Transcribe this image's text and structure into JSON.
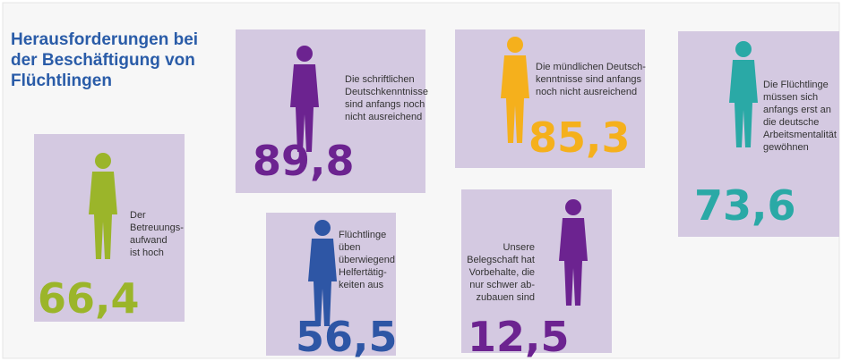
{
  "chart_data": {
    "type": "pictogram",
    "title": [
      "Herausforderungen bei",
      "der Beschäftigung von",
      "Flüchtlingen"
    ],
    "items": [
      {
        "label": [
          "Der",
          "Betreuungs-",
          "aufwand",
          "ist hoch"
        ],
        "value": 66.4,
        "value_label": "66,4",
        "color": "#9bb52a"
      },
      {
        "label": [
          "Die schriftlichen",
          "Deutschkenntnisse",
          "sind anfangs noch",
          "nicht ausreichend"
        ],
        "value": 89.8,
        "value_label": "89,8",
        "color": "#6c2390"
      },
      {
        "label": [
          "Die mündlichen Deutsch-",
          "kenntnisse sind anfangs",
          "noch nicht ausreichend"
        ],
        "value": 85.3,
        "value_label": "85,3",
        "color": "#f5b01c"
      },
      {
        "label": [
          "Die Flüchtlinge",
          "müssen sich",
          "anfangs erst an",
          "die deutsche",
          "Arbeitsmentalität",
          "gewöhnen"
        ],
        "value": 73.6,
        "value_label": "73,6",
        "color": "#2aa9a6"
      },
      {
        "label": [
          "Flüchtlinge",
          "üben",
          "überwiegend",
          "Helfertätig-",
          "keiten aus"
        ],
        "value": 56.5,
        "value_label": "56,5",
        "color": "#2e56a5"
      },
      {
        "label": [
          "Unsere",
          "Belegschaft hat",
          "Vorbehalte, die",
          "nur schwer ab-",
          "zubauen sind"
        ],
        "value": 12.5,
        "value_label": "12,5",
        "color": "#6c2390"
      }
    ]
  }
}
